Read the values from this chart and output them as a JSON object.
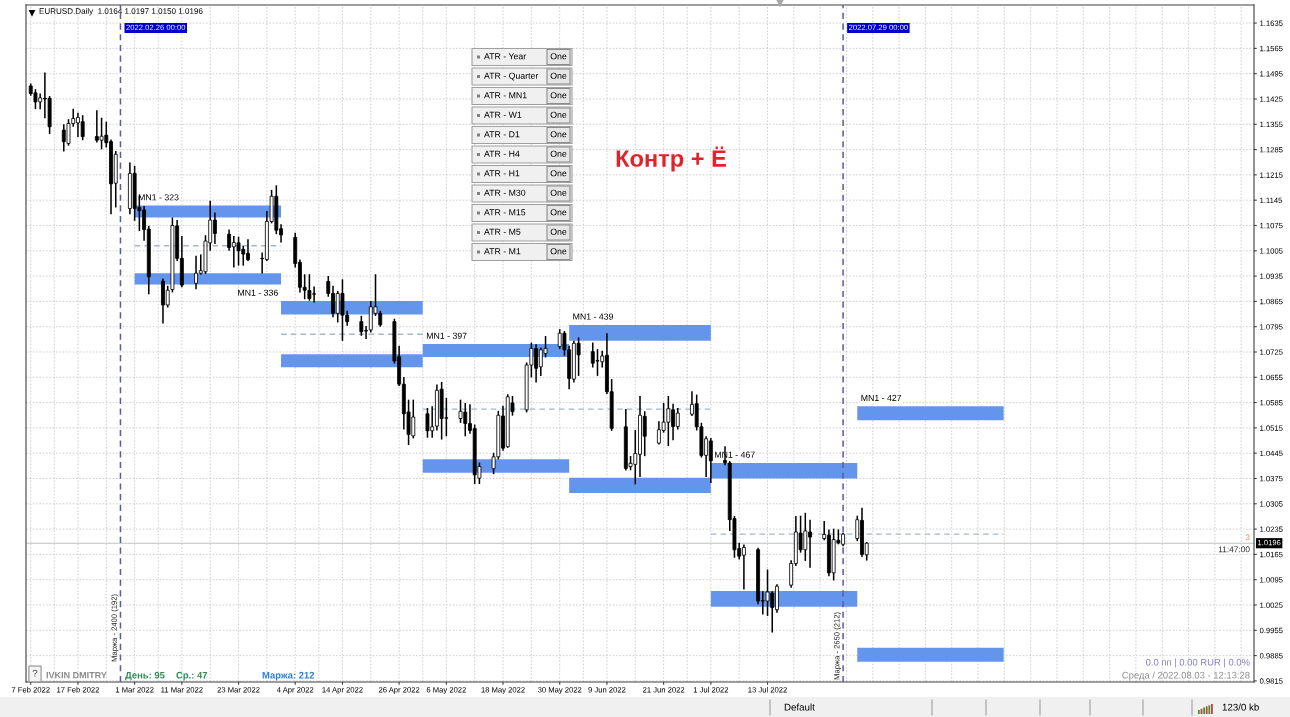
{
  "chart_data": {
    "type": "candlestick",
    "title": "EURUSD.Daily  1.0164 1.0197 1.0150 1.0196",
    "x": [
      "2022-02-07",
      "2022-02-08",
      "2022-02-09",
      "2022-02-10",
      "2022-02-11",
      "2022-02-14",
      "2022-02-15",
      "2022-02-16",
      "2022-02-17",
      "2022-02-18",
      "2022-02-21",
      "2022-02-22",
      "2022-02-23",
      "2022-02-24",
      "2022-02-25",
      "2022-02-28",
      "2022-03-01",
      "2022-03-02",
      "2022-03-03",
      "2022-03-04",
      "2022-03-07",
      "2022-03-08",
      "2022-03-09",
      "2022-03-10",
      "2022-03-11",
      "2022-03-14",
      "2022-03-15",
      "2022-03-16",
      "2022-03-17",
      "2022-03-18",
      "2022-03-21",
      "2022-03-22",
      "2022-03-23",
      "2022-03-24",
      "2022-03-25",
      "2022-03-28",
      "2022-03-29",
      "2022-03-30",
      "2022-03-31",
      "2022-04-01",
      "2022-04-04",
      "2022-04-05",
      "2022-04-06",
      "2022-04-07",
      "2022-04-08",
      "2022-04-11",
      "2022-04-12",
      "2022-04-13",
      "2022-04-14",
      "2022-04-15",
      "2022-04-18",
      "2022-04-19",
      "2022-04-20",
      "2022-04-21",
      "2022-04-22",
      "2022-04-25",
      "2022-04-26",
      "2022-04-27",
      "2022-04-28",
      "2022-04-29",
      "2022-05-02",
      "2022-05-03",
      "2022-05-04",
      "2022-05-05",
      "2022-05-06",
      "2022-05-09",
      "2022-05-10",
      "2022-05-11",
      "2022-05-12",
      "2022-05-13",
      "2022-05-16",
      "2022-05-17",
      "2022-05-18",
      "2022-05-19",
      "2022-05-20",
      "2022-05-23",
      "2022-05-24",
      "2022-05-25",
      "2022-05-26",
      "2022-05-27",
      "2022-05-30",
      "2022-05-31",
      "2022-06-01",
      "2022-06-02",
      "2022-06-03",
      "2022-06-06",
      "2022-06-07",
      "2022-06-08",
      "2022-06-09",
      "2022-06-10",
      "2022-06-13",
      "2022-06-14",
      "2022-06-15",
      "2022-06-16",
      "2022-06-17",
      "2022-06-20",
      "2022-06-21",
      "2022-06-22",
      "2022-06-23",
      "2022-06-24",
      "2022-06-27",
      "2022-06-28",
      "2022-06-29",
      "2022-06-30",
      "2022-07-01",
      "2022-07-04",
      "2022-07-05",
      "2022-07-06",
      "2022-07-07",
      "2022-07-08",
      "2022-07-11",
      "2022-07-12",
      "2022-07-13",
      "2022-07-14",
      "2022-07-15",
      "2022-07-18",
      "2022-07-19",
      "2022-07-20",
      "2022-07-21",
      "2022-07-22",
      "2022-07-25",
      "2022-07-26",
      "2022-07-27",
      "2022-07-28",
      "2022-07-29",
      "2022-08-01",
      "2022-08-02",
      "2022-08-03"
    ],
    "ohlc": [
      [
        1.1461,
        1.1466,
        1.1436,
        1.144
      ],
      [
        1.1442,
        1.145,
        1.1399,
        1.1417
      ],
      [
        1.1417,
        1.1438,
        1.1399,
        1.1428
      ],
      [
        1.1427,
        1.1496,
        1.1374,
        1.1425
      ],
      [
        1.1427,
        1.1431,
        1.133,
        1.1348
      ],
      [
        1.1339,
        1.1353,
        1.1282,
        1.1307
      ],
      [
        1.1302,
        1.1367,
        1.1298,
        1.1357
      ],
      [
        1.1357,
        1.1396,
        1.135,
        1.1371
      ],
      [
        1.1359,
        1.1385,
        1.1322,
        1.1374
      ],
      [
        1.1362,
        1.1378,
        1.1313,
        1.1321
      ],
      [
        1.1321,
        1.1392,
        1.1307,
        1.1311
      ],
      [
        1.1311,
        1.1371,
        1.1288,
        1.1322
      ],
      [
        1.1325,
        1.136,
        1.1293,
        1.1304
      ],
      [
        1.1307,
        1.1311,
        1.1108,
        1.119
      ],
      [
        1.1192,
        1.1279,
        1.1127,
        1.1272
      ],
      [
        1.1122,
        1.1247,
        1.1108,
        1.1219
      ],
      [
        1.1219,
        1.1238,
        1.109,
        1.1122
      ],
      [
        1.1125,
        1.1155,
        1.1062,
        1.1116
      ],
      [
        1.1118,
        1.1127,
        1.1035,
        1.1064
      ],
      [
        1.1065,
        1.1072,
        1.0887,
        1.0933
      ],
      [
        1.0921,
        1.0926,
        1.0806,
        1.0855
      ],
      [
        1.0855,
        1.0906,
        1.085,
        1.0896
      ],
      [
        1.0898,
        1.1095,
        1.0892,
        1.1075
      ],
      [
        1.1074,
        1.1088,
        1.0979,
        1.0984
      ],
      [
        1.0984,
        1.1044,
        1.0906,
        1.091
      ],
      [
        1.0915,
        1.0989,
        1.0901,
        1.0943
      ],
      [
        1.0943,
        1.0993,
        1.0941,
        1.095
      ],
      [
        1.0947,
        1.1046,
        1.0943,
        1.1032
      ],
      [
        1.1027,
        1.1141,
        1.1007,
        1.109
      ],
      [
        1.109,
        1.1109,
        1.1026,
        1.1053
      ],
      [
        1.1051,
        1.1062,
        1.1007,
        1.1014
      ],
      [
        1.1016,
        1.1044,
        1.0961,
        1.1028
      ],
      [
        1.1027,
        1.1042,
        1.0966,
        1.1005
      ],
      [
        1.1009,
        1.1016,
        1.0966,
        1.0996
      ],
      [
        1.0998,
        1.1035,
        1.0979,
        1.0981
      ],
      [
        1.0984,
        1.0998,
        1.0944,
        1.0983
      ],
      [
        1.0981,
        1.1113,
        1.0979,
        1.1086
      ],
      [
        1.1086,
        1.1171,
        1.1083,
        1.1156
      ],
      [
        1.1156,
        1.1184,
        1.1053,
        1.1062
      ],
      [
        1.1066,
        1.1076,
        1.103,
        1.1049
      ],
      [
        1.1042,
        1.1053,
        1.0961,
        1.097
      ],
      [
        1.0973,
        1.0979,
        1.0892,
        1.0904
      ],
      [
        1.0904,
        1.0938,
        1.0873,
        1.0896
      ],
      [
        1.0895,
        1.0938,
        1.0869,
        1.0873
      ],
      [
        1.0886,
        1.0904,
        1.0864,
        1.0885
      ],
      [
        1.092,
        1.0933,
        1.088,
        1.0887
      ],
      [
        1.0887,
        1.0906,
        1.0823,
        1.0832
      ],
      [
        1.0832,
        1.0892,
        1.0809,
        1.0887
      ],
      [
        1.0887,
        1.0924,
        1.0758,
        1.0827
      ],
      [
        1.0827,
        1.0837,
        1.08,
        1.0809
      ],
      [
        1.0809,
        1.0823,
        1.0772,
        1.0781
      ],
      [
        1.0784,
        1.0795,
        1.0763,
        1.0783
      ],
      [
        1.0786,
        1.0864,
        1.0781,
        1.085
      ],
      [
        1.0832,
        1.0938,
        1.0827,
        1.085
      ],
      [
        1.0832,
        1.0837,
        1.0797,
        1.08
      ],
      [
        1.0809,
        1.0815,
        1.0695,
        1.07
      ],
      [
        1.0712,
        1.074,
        1.0633,
        1.0636
      ],
      [
        1.0636,
        1.0654,
        1.0513,
        1.0554
      ],
      [
        1.0559,
        1.0591,
        1.047,
        1.0497
      ],
      [
        1.0493,
        1.0591,
        1.0488,
        1.0545
      ],
      [
        1.0554,
        1.0568,
        1.049,
        1.0507
      ],
      [
        1.0507,
        1.0573,
        1.049,
        1.0518
      ],
      [
        1.052,
        1.0633,
        1.051,
        1.0619
      ],
      [
        1.0622,
        1.064,
        1.0485,
        1.0541
      ],
      [
        1.0543,
        1.0596,
        1.0494,
        1.0542
      ],
      [
        1.0541,
        1.0591,
        1.0531,
        1.0561
      ],
      [
        1.0559,
        1.0582,
        1.0494,
        1.0527
      ],
      [
        1.0527,
        1.0578,
        1.0501,
        1.0508
      ],
      [
        1.0513,
        1.0522,
        1.0362,
        1.0385
      ],
      [
        1.0376,
        1.0417,
        1.0362,
        1.0408
      ],
      [
        1.0402,
        1.0444,
        1.0389,
        1.0435
      ],
      [
        1.0435,
        1.056,
        1.043,
        1.055
      ],
      [
        1.0548,
        1.0574,
        1.0454,
        1.0459
      ],
      [
        1.0463,
        1.0606,
        1.0462,
        1.0601
      ],
      [
        1.0584,
        1.0601,
        1.0551,
        1.056
      ],
      [
        1.0565,
        1.0694,
        1.056,
        1.0689
      ],
      [
        1.0689,
        1.0749,
        1.0657,
        1.0735
      ],
      [
        1.0735,
        1.0744,
        1.0643,
        1.068
      ],
      [
        1.0684,
        1.0735,
        1.0661,
        1.0731
      ],
      [
        1.0721,
        1.0767,
        1.0712,
        1.0735
      ],
      [
        1.074,
        1.0786,
        1.0735,
        1.0777
      ],
      [
        1.0777,
        1.0781,
        1.0717,
        1.0731
      ],
      [
        1.0731,
        1.074,
        1.0624,
        1.0652
      ],
      [
        1.065,
        1.0754,
        1.0643,
        1.0749
      ],
      [
        1.0749,
        1.0763,
        1.0661,
        1.0717
      ],
      [
        1.0726,
        1.0749,
        1.0684,
        1.0694
      ],
      [
        1.0701,
        1.0731,
        1.0661,
        1.07
      ],
      [
        1.0698,
        1.0726,
        1.0684,
        1.0714
      ],
      [
        1.0716,
        1.0775,
        1.0611,
        1.0615
      ],
      [
        1.0615,
        1.0648,
        1.0509,
        1.0514
      ],
      [
        1.0518,
        1.0565,
        1.0399,
        1.0403
      ],
      [
        1.0408,
        1.0435,
        1.04,
        1.0417
      ],
      [
        1.0414,
        1.0507,
        1.0361,
        1.0444
      ],
      [
        1.0442,
        1.0601,
        1.0381,
        1.055
      ],
      [
        1.0547,
        1.0559,
        1.0439,
        1.0492
      ],
      [
        1.0473,
        1.0531,
        1.0471,
        1.051
      ],
      [
        1.0508,
        1.0582,
        1.0504,
        1.0531
      ],
      [
        1.0531,
        1.0601,
        1.0467,
        1.0568
      ],
      [
        1.0565,
        1.058,
        1.0483,
        1.0519
      ],
      [
        1.0519,
        1.0568,
        1.0513,
        1.0556
      ],
      [
        1.0553,
        1.0614,
        1.055,
        1.058
      ],
      [
        1.0582,
        1.0605,
        1.051,
        1.0518
      ],
      [
        1.0518,
        1.0527,
        1.0435,
        1.0439
      ],
      [
        1.0439,
        1.049,
        1.0381,
        1.0485
      ],
      [
        1.0479,
        1.0485,
        1.0365,
        1.0424
      ],
      [
        1.0425,
        1.0462,
        1.0414,
        1.0419
      ],
      [
        1.0418,
        1.0421,
        1.0232,
        1.0261
      ],
      [
        1.0264,
        1.0269,
        1.0158,
        1.0178
      ],
      [
        1.0181,
        1.0195,
        1.0153,
        1.016
      ],
      [
        1.0163,
        1.019,
        1.007,
        1.0184
      ],
      [
        1.0178,
        1.0181,
        1.0029,
        1.0036
      ],
      [
        1.0037,
        1.0061,
        1.0001,
        1.0036
      ],
      [
        1.0036,
        1.0121,
        0.9997,
        1.0061
      ],
      [
        1.0058,
        1.0061,
        0.9951,
        1.0018
      ],
      [
        1.0012,
        1.008,
        1.0006,
        1.0077
      ],
      [
        1.008,
        1.0147,
        1.0075,
        1.014
      ],
      [
        1.014,
        1.0269,
        1.0135,
        1.0227
      ],
      [
        1.0224,
        1.027,
        1.0172,
        1.0178
      ],
      [
        1.0178,
        1.0278,
        1.0149,
        1.023
      ],
      [
        1.0227,
        1.0259,
        1.013,
        1.0213
      ],
      [
        1.0209,
        1.0255,
        1.0206,
        1.022
      ],
      [
        1.0218,
        1.0232,
        1.0107,
        1.0114
      ],
      [
        1.0114,
        1.0234,
        1.0095,
        1.0206
      ],
      [
        1.0204,
        1.0232,
        1.0195,
        1.0197
      ],
      [
        1.0193,
        1.0223,
        1.019,
        1.0221
      ],
      [
        1.0209,
        1.027,
        1.0204,
        1.0261
      ],
      [
        1.0259,
        1.0292,
        1.016,
        1.0165
      ],
      [
        1.0164,
        1.0197,
        1.015,
        1.0196
      ]
    ],
    "series": [
      {
        "type": "histogram",
        "color": "#6495ed",
        "bins": [
          "2022-03-01",
          "2022-04-01",
          "2022-05-01",
          "2022-06-01",
          "2022-07-01",
          "2022-08-01",
          "2022-09-01"
        ],
        "base": [
          1.1097,
          1.0829,
          1.0711,
          1.0756,
          1.0375,
          1.0536
        ],
        "values": [
          0.0033,
          0.0037,
          0.0036,
          0.0044,
          0.0043,
          0.0039
        ]
      },
      {
        "type": "histogram",
        "color": "#6495ed",
        "bins": [
          "2022-03-01",
          "2022-04-01",
          "2022-05-01",
          "2022-06-01",
          "2022-07-01",
          "2022-08-01",
          "2022-09-01"
        ],
        "base": [
          1.0912,
          1.0683,
          1.0391,
          1.0335,
          1.002,
          0.9868
        ],
        "values": [
          0.0031,
          0.0036,
          0.0037,
          0.0042,
          0.0044,
          0.0039
        ]
      },
      {
        "type": "line",
        "color": "#a4b8cc",
        "line_style": "dashed",
        "x": [
          "2022-03-01",
          "2022-04-01"
        ],
        "values": [
          1.1019,
          1.1019
        ]
      },
      {
        "type": "line",
        "color": "#a4b8cc",
        "line_style": "dashed",
        "x": [
          "2022-04-01",
          "2022-05-01"
        ],
        "values": [
          1.0774,
          1.0774
        ]
      },
      {
        "type": "line",
        "color": "#a4b8cc",
        "line_style": "dashed",
        "x": [
          "2022-05-01",
          "2022-07-01"
        ],
        "values": [
          1.0567,
          1.0567
        ]
      },
      {
        "type": "line",
        "color": "#a4b8cc",
        "line_style": "dashed",
        "x": [
          "2022-07-01",
          "2022-09-01"
        ],
        "values": [
          1.0221,
          1.0221
        ]
      }
    ],
    "xlim": [
      "2022-02-06",
      "2022-10-24"
    ],
    "xticks": [
      {
        "value": "2022-02-07",
        "label": "7 Feb 2022"
      },
      {
        "value": "2022-02-17",
        "label": "17 Feb 2022"
      },
      {
        "value": "2022-03-01",
        "label": "1 Mar 2022"
      },
      {
        "value": "2022-03-11",
        "label": "11 Mar 2022"
      },
      {
        "value": "2022-03-23",
        "label": "23 Mar 2022"
      },
      {
        "value": "2022-04-04",
        "label": "4 Apr 2022"
      },
      {
        "value": "2022-04-14",
        "label": "14 Apr 2022"
      },
      {
        "value": "2022-04-26",
        "label": "26 Apr 2022"
      },
      {
        "value": "2022-05-06",
        "label": "6 May 2022"
      },
      {
        "value": "2022-05-18",
        "label": "18 May 2022"
      },
      {
        "value": "2022-05-30",
        "label": "30 May 2022"
      },
      {
        "value": "2022-06-09",
        "label": "9 Jun 2022"
      },
      {
        "value": "2022-06-21",
        "label": "21 Jun 2022"
      },
      {
        "value": "2022-07-01",
        "label": "1 Jul 2022"
      },
      {
        "value": "2022-07-13",
        "label": "13 Jul 2022"
      }
    ],
    "ylim": [
      0.9812,
      1.1685
    ],
    "yticks": [
      1.1635,
      1.1565,
      1.1495,
      1.1425,
      1.1355,
      1.1285,
      1.1215,
      1.1145,
      1.1075,
      1.1005,
      1.0935,
      1.0865,
      1.0795,
      1.0725,
      1.0655,
      1.0585,
      1.0515,
      1.0445,
      1.0375,
      1.0305,
      1.0235,
      1.0165,
      1.0095,
      1.0025,
      0.9955,
      0.9885,
      0.9815
    ],
    "grid": true,
    "ref_lines": [
      {
        "axis": "x",
        "value": "2022-02-26",
        "label": "2022.02.26 00:00",
        "color": "#5b5ba5",
        "line_style": "dashed"
      },
      {
        "axis": "x",
        "value": "2022-07-29",
        "label": "2022.07.29 00:00",
        "color": "#5b5ba5",
        "line_style": "dashed"
      },
      {
        "axis": "y",
        "value": 1.0196,
        "label": "1.0196",
        "color": "#c0c0c0",
        "line_style": "solid"
      }
    ],
    "annotations": [
      "Контр + Ё",
      "IVKIN DMITRY",
      "День: 95",
      "Ср.: 47",
      "Маржа: 212",
      "0.0 пп | 0.00 RUR | 0.0%",
      "Среда / 2022.08.03 - 12:13:28",
      "11:47:00",
      "3",
      "Маржа - 2400 (192)",
      "Маржа - 2650 (212)",
      "?",
      "Default",
      "123/0 kb",
      "ATR - Year",
      "One",
      "ATR - Quarter",
      "One",
      "ATR - MN1",
      "One",
      "ATR - W1",
      "One",
      "ATR - D1",
      "One",
      "ATR - H4",
      "One",
      "ATR - H1",
      "One",
      "ATR - M30",
      "One",
      "ATR - M15",
      "One",
      "ATR - M5",
      "One",
      "ATR - M1",
      "One",
      {
        "text": "MN1 - 323",
        "x": "2022-03-01",
        "y": 1.113
      },
      {
        "text": "MN1 - 336",
        "x": "2022-04-01",
        "y": 1.0866
      },
      {
        "text": "MN1 - 397",
        "x": "2022-05-01",
        "y": 1.0747
      },
      {
        "text": "MN1 - 439",
        "x": "2022-06-01",
        "y": 1.08
      },
      {
        "text": "MN1 - 467",
        "x": "2022-07-01",
        "y": 1.0418
      },
      {
        "text": "MN1 - 427",
        "x": "2022-08-01",
        "y": 1.0575
      }
    ]
  }
}
